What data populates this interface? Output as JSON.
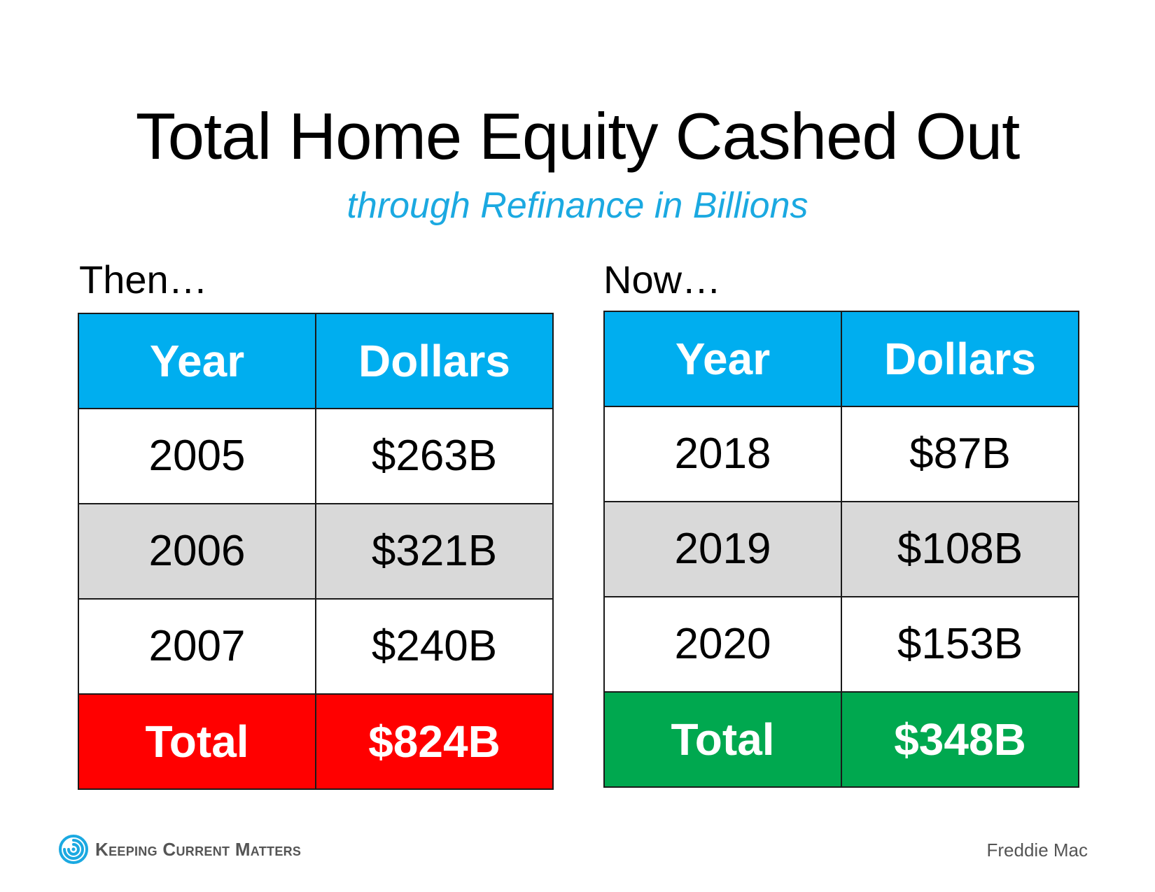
{
  "title": "Total Home Equity Cashed Out",
  "subtitle": "through Refinance in Billions",
  "colors": {
    "header_bg": "#00aeef",
    "subtitle": "#1ba9e1",
    "alt_row": "#d9d9d9",
    "then_total_bg": "#ff0000",
    "now_total_bg": "#00a84f"
  },
  "then": {
    "label": "Then…",
    "header": {
      "year": "Year",
      "dollars": "Dollars"
    },
    "rows": [
      {
        "year": "2005",
        "dollars": "$263B"
      },
      {
        "year": "2006",
        "dollars": "$321B"
      },
      {
        "year": "2007",
        "dollars": "$240B"
      }
    ],
    "total": {
      "label": "Total",
      "value": "$824B"
    }
  },
  "now": {
    "label": "Now…",
    "header": {
      "year": "Year",
      "dollars": "Dollars"
    },
    "rows": [
      {
        "year": "2018",
        "dollars": "$87B"
      },
      {
        "year": "2019",
        "dollars": "$108B"
      },
      {
        "year": "2020",
        "dollars": "$153B"
      }
    ],
    "total": {
      "label": "Total",
      "value": "$348B"
    }
  },
  "footer": {
    "brand": "Keeping Current Matters",
    "brand_icon": "swirl-logo-icon",
    "source": "Freddie Mac"
  }
}
